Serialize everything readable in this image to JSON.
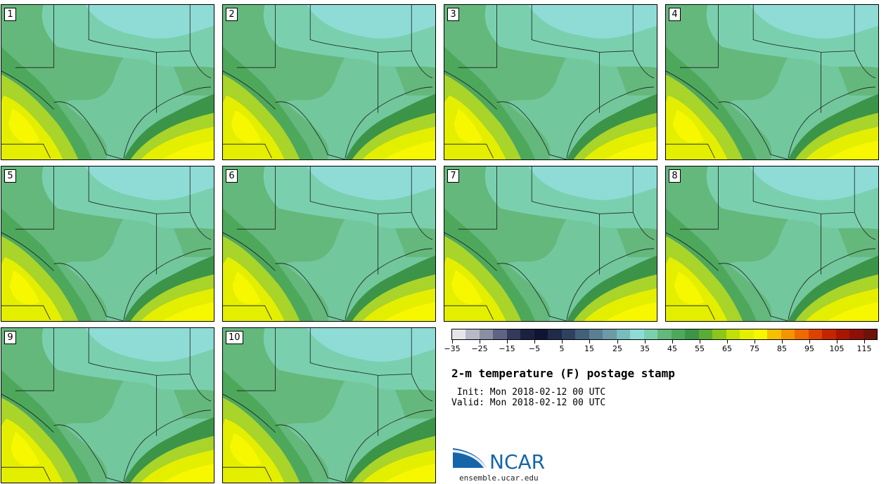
{
  "panels": [
    "1",
    "2",
    "3",
    "4",
    "5",
    "6",
    "7",
    "8",
    "9",
    "10"
  ],
  "field_colors": {
    "cold": "#8fdcd6",
    "cool": "#7ad0ae",
    "mid": "#64b87c",
    "warm_mid": "#4ea85c",
    "dark": "#3c9448",
    "yellow_green": "#a9d42a",
    "yellow": "#e4ef00",
    "bright_yellow": "#f7f800",
    "boundary": "#1a1a1a"
  },
  "colorbar": {
    "colors": [
      "#e6e6ea",
      "#b7b9c6",
      "#8c8fa3",
      "#5e6482",
      "#333a5c",
      "#1b213f",
      "#0f1531",
      "#1e2b4b",
      "#2e425f",
      "#43607a",
      "#5a7f92",
      "#6a9ba6",
      "#79bcbc",
      "#8fdcd6",
      "#7ad0ae",
      "#64b87c",
      "#4ea85c",
      "#3c9448",
      "#5aac34",
      "#8cc51c",
      "#c1df08",
      "#e4ef00",
      "#f7f800",
      "#f5c000",
      "#f29500",
      "#ee6a00",
      "#dc4200",
      "#c42400",
      "#a81500",
      "#8c1008",
      "#6e1208"
    ],
    "ticks": [
      "−35",
      "−25",
      "−15",
      "−5",
      "5",
      "15",
      "25",
      "35",
      "45",
      "55",
      "65",
      "75",
      "85",
      "95",
      "105",
      "115"
    ]
  },
  "title": "2-m temperature (F) postage stamp",
  "init_text": " Init: Mon 2018-02-12 00 UTC",
  "valid_text": "Valid: Mon 2018-02-12 00 UTC",
  "logo": {
    "name": "NCAR",
    "url": "ensemble.ucar.edu",
    "blue": "#1565a8"
  }
}
